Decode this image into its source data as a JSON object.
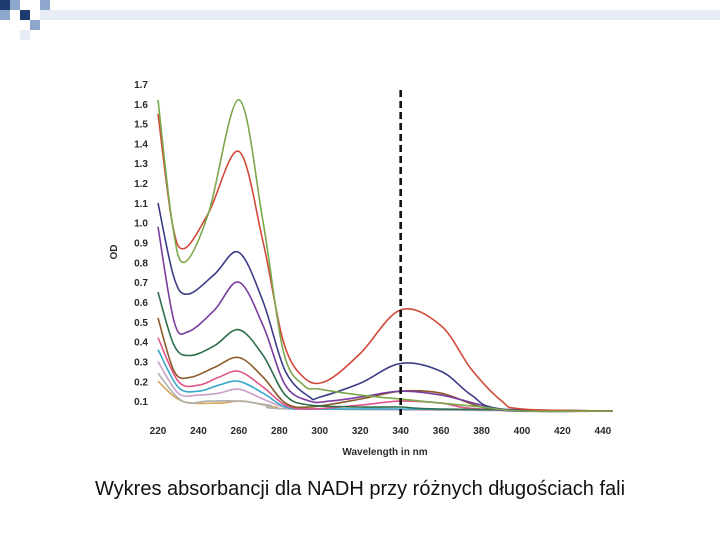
{
  "caption": "Wykres absorbancji dla NADH przy różnych długościach fali",
  "header_colors": {
    "dark": "#1f3a6e",
    "mid": "#8fa6cd",
    "light": "#e8ecf4"
  },
  "chart_data": {
    "type": "line",
    "xlabel": "Wavelength in nm",
    "ylabel": "OD",
    "xlim": [
      220,
      445
    ],
    "ylim": [
      0.05,
      1.72
    ],
    "x_ticks": [
      "220",
      "240",
      "260",
      "280",
      "300",
      "320",
      "340",
      "360",
      "380",
      "400",
      "420",
      "440"
    ],
    "y_ticks": [
      "0.1",
      "0.2",
      "0.3",
      "0.4",
      "0.5",
      "0.6",
      "0.7",
      "0.8",
      "0.9",
      "1.0",
      "1.1",
      "1.2",
      "1.3",
      "1.4",
      "1.5",
      "1.6",
      "1.7"
    ],
    "marker_line_x": 340,
    "series": [
      {
        "color": "#7aa84a",
        "points": [
          [
            220,
            1.62
          ],
          [
            227,
            1.0
          ],
          [
            233,
            0.8
          ],
          [
            245,
            1.05
          ],
          [
            260,
            1.62
          ],
          [
            272,
            1.0
          ],
          [
            282,
            0.35
          ],
          [
            292,
            0.18
          ],
          [
            300,
            0.16
          ],
          [
            320,
            0.13
          ],
          [
            340,
            0.11
          ],
          [
            360,
            0.09
          ],
          [
            380,
            0.07
          ],
          [
            400,
            0.05
          ],
          [
            445,
            0.05
          ]
        ]
      },
      {
        "color": "#d2493a",
        "points": [
          [
            220,
            1.55
          ],
          [
            227,
            1.0
          ],
          [
            233,
            0.87
          ],
          [
            245,
            1.05
          ],
          [
            260,
            1.36
          ],
          [
            272,
            0.9
          ],
          [
            282,
            0.4
          ],
          [
            292,
            0.22
          ],
          [
            303,
            0.2
          ],
          [
            320,
            0.34
          ],
          [
            340,
            0.56
          ],
          [
            360,
            0.48
          ],
          [
            375,
            0.26
          ],
          [
            390,
            0.1
          ],
          [
            400,
            0.06
          ],
          [
            445,
            0.05
          ]
        ]
      },
      {
        "color": "#3c3c86",
        "points": [
          [
            220,
            1.1
          ],
          [
            228,
            0.72
          ],
          [
            235,
            0.64
          ],
          [
            248,
            0.74
          ],
          [
            260,
            0.85
          ],
          [
            272,
            0.6
          ],
          [
            283,
            0.25
          ],
          [
            295,
            0.12
          ],
          [
            300,
            0.12
          ],
          [
            320,
            0.19
          ],
          [
            340,
            0.29
          ],
          [
            360,
            0.25
          ],
          [
            375,
            0.13
          ],
          [
            390,
            0.06
          ],
          [
            445,
            0.05
          ]
        ]
      },
      {
        "color": "#7a3c9e",
        "points": [
          [
            220,
            0.98
          ],
          [
            228,
            0.5
          ],
          [
            235,
            0.45
          ],
          [
            248,
            0.56
          ],
          [
            260,
            0.7
          ],
          [
            272,
            0.48
          ],
          [
            283,
            0.18
          ],
          [
            295,
            0.1
          ],
          [
            305,
            0.1
          ],
          [
            320,
            0.12
          ],
          [
            340,
            0.15
          ],
          [
            360,
            0.13
          ],
          [
            380,
            0.08
          ],
          [
            395,
            0.05
          ],
          [
            445,
            0.05
          ]
        ]
      },
      {
        "color": "#2f6e4a",
        "points": [
          [
            220,
            0.65
          ],
          [
            228,
            0.38
          ],
          [
            236,
            0.33
          ],
          [
            248,
            0.38
          ],
          [
            260,
            0.46
          ],
          [
            272,
            0.33
          ],
          [
            283,
            0.13
          ],
          [
            295,
            0.08
          ],
          [
            320,
            0.07
          ],
          [
            340,
            0.07
          ],
          [
            360,
            0.06
          ],
          [
            445,
            0.05
          ]
        ]
      },
      {
        "color": "#8a5a2a",
        "points": [
          [
            220,
            0.52
          ],
          [
            228,
            0.25
          ],
          [
            236,
            0.22
          ],
          [
            248,
            0.27
          ],
          [
            260,
            0.32
          ],
          [
            272,
            0.22
          ],
          [
            283,
            0.09
          ],
          [
            295,
            0.07
          ],
          [
            320,
            0.11
          ],
          [
            340,
            0.15
          ],
          [
            360,
            0.14
          ],
          [
            380,
            0.07
          ],
          [
            400,
            0.05
          ],
          [
            445,
            0.05
          ]
        ]
      },
      {
        "color": "#e0558a",
        "points": [
          [
            220,
            0.42
          ],
          [
            230,
            0.2
          ],
          [
            240,
            0.18
          ],
          [
            250,
            0.22
          ],
          [
            260,
            0.25
          ],
          [
            272,
            0.17
          ],
          [
            283,
            0.08
          ],
          [
            295,
            0.06
          ],
          [
            320,
            0.08
          ],
          [
            340,
            0.1
          ],
          [
            360,
            0.09
          ],
          [
            380,
            0.06
          ],
          [
            445,
            0.05
          ]
        ]
      },
      {
        "color": "#3aa6c9",
        "points": [
          [
            220,
            0.36
          ],
          [
            230,
            0.17
          ],
          [
            240,
            0.15
          ],
          [
            250,
            0.18
          ],
          [
            260,
            0.2
          ],
          [
            272,
            0.14
          ],
          [
            283,
            0.07
          ],
          [
            295,
            0.06
          ],
          [
            340,
            0.06
          ],
          [
            445,
            0.05
          ]
        ]
      },
      {
        "color": "#c8a0c8",
        "points": [
          [
            220,
            0.3
          ],
          [
            230,
            0.14
          ],
          [
            240,
            0.13
          ],
          [
            250,
            0.14
          ],
          [
            260,
            0.16
          ],
          [
            272,
            0.11
          ],
          [
            283,
            0.07
          ],
          [
            300,
            0.06
          ],
          [
            445,
            0.05
          ]
        ]
      },
      {
        "color": "#b0b0b0",
        "points": [
          [
            220,
            0.24
          ],
          [
            232,
            0.1
          ],
          [
            245,
            0.1
          ],
          [
            260,
            0.1
          ],
          [
            275,
            0.08
          ],
          [
            290,
            0.06
          ],
          [
            445,
            0.05
          ]
        ]
      },
      {
        "color": "#d4a55a",
        "points": [
          [
            220,
            0.2
          ],
          [
            232,
            0.1
          ],
          [
            250,
            0.09
          ],
          [
            262,
            0.1
          ],
          [
            278,
            0.07
          ],
          [
            295,
            0.06
          ],
          [
            445,
            0.05
          ]
        ]
      }
    ]
  }
}
